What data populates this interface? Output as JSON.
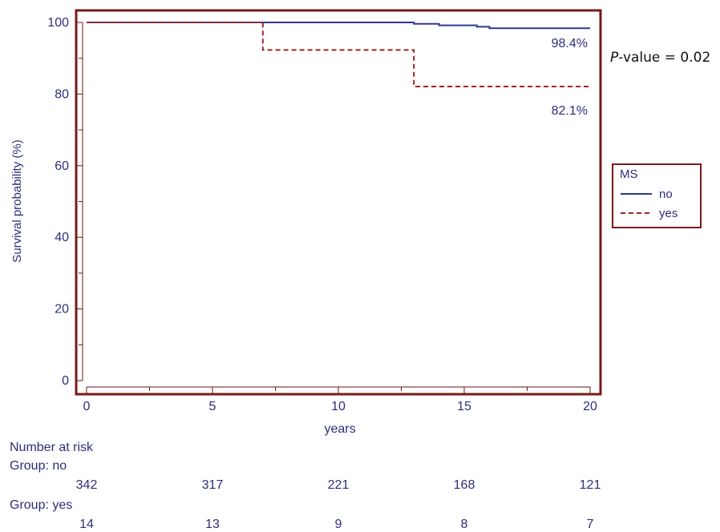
{
  "chart_data": {
    "type": "line",
    "xlabel": "years",
    "ylabel": "Survival probability (%)",
    "xlim": [
      0,
      20
    ],
    "ylim": [
      0,
      100
    ],
    "xticks": [
      0,
      5,
      10,
      15,
      20
    ],
    "yticks": [
      0,
      20,
      40,
      60,
      80,
      100
    ],
    "legend": {
      "title": "MS",
      "position": "right"
    },
    "series": [
      {
        "name": "no",
        "color": "#2e3a8c",
        "style": "solid",
        "x": [
          0,
          13,
          13,
          14,
          14,
          15.5,
          15.5,
          16,
          16,
          20
        ],
        "y": [
          100,
          100,
          99.6,
          99.6,
          99.2,
          99.2,
          98.8,
          98.8,
          98.4,
          98.4
        ],
        "end_label": "98.4%"
      },
      {
        "name": "yes",
        "color": "#a82020",
        "style": "dashed",
        "x": [
          0,
          7,
          7,
          13,
          13,
          20
        ],
        "y": [
          100,
          100,
          92.3,
          92.3,
          82.1,
          82.1
        ],
        "end_label": "82.1%"
      }
    ],
    "annotation": {
      "prefix": "P",
      "suffix": "-value = 0.02"
    }
  },
  "risk_table": {
    "title": "Number at risk",
    "groups": [
      {
        "label": "Group: no",
        "values": [
          "342",
          "317",
          "221",
          "168",
          "121"
        ]
      },
      {
        "label": "Group: yes",
        "values": [
          "14",
          "13",
          "9",
          "8",
          "7"
        ]
      }
    ]
  }
}
